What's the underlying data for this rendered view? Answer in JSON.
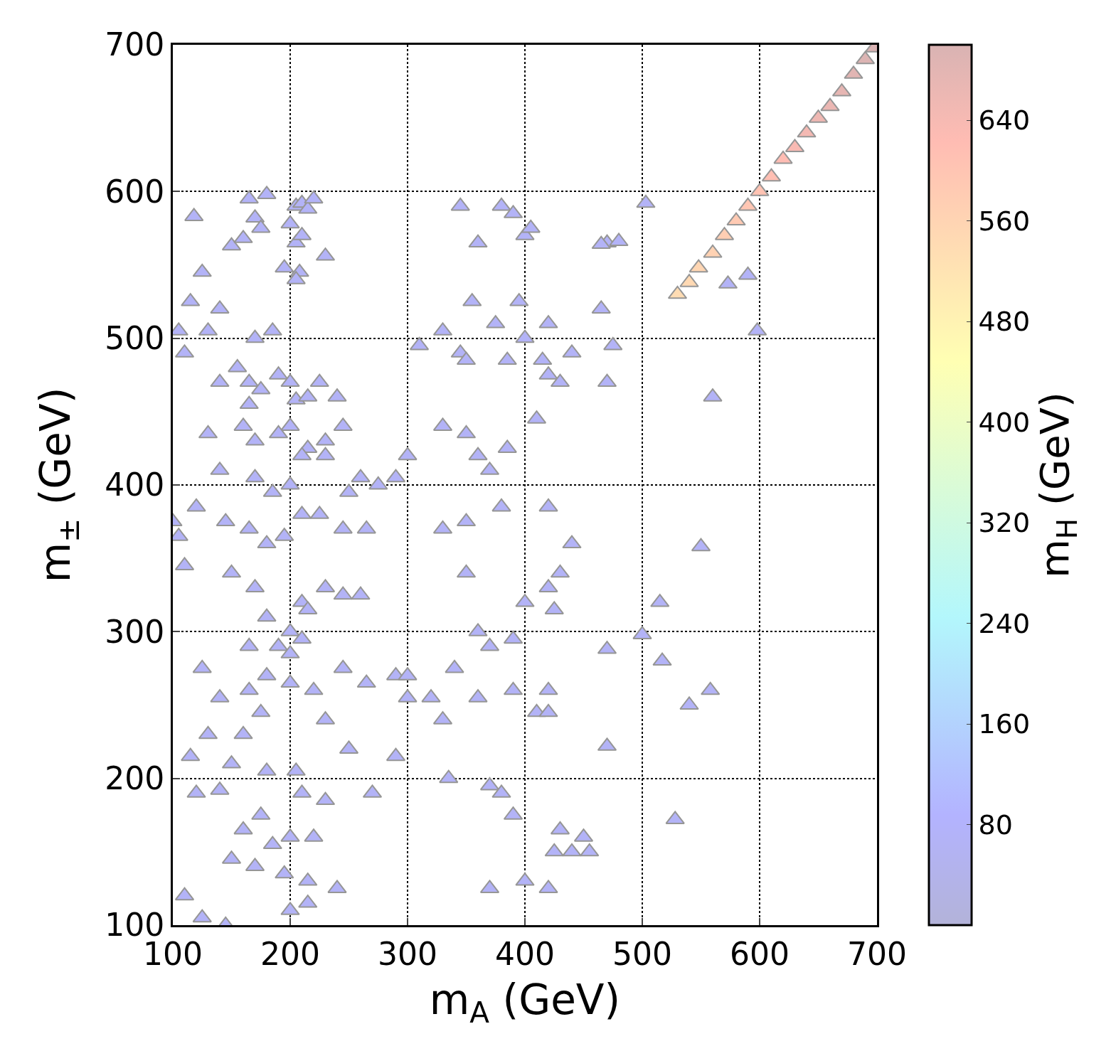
{
  "chart_data": {
    "type": "scatter",
    "xlabel": "m$_{A}$ (GeV)",
    "ylabel": "m$_{±}$ (GeV)",
    "clabel": "m$_{H}$ (GeV)",
    "marker": "triangle",
    "grid": true,
    "xlim": [
      100,
      700
    ],
    "ylim": [
      100,
      700
    ],
    "xticks": [
      100,
      200,
      300,
      400,
      500,
      600,
      700
    ],
    "yticks": [
      100,
      200,
      300,
      400,
      500,
      600,
      700
    ],
    "clim": [
      0,
      700
    ],
    "cticks": [
      80,
      160,
      240,
      320,
      400,
      480,
      560,
      640
    ],
    "x": [
      118,
      140,
      125,
      150,
      160,
      170,
      180,
      165,
      175,
      205,
      210,
      215,
      220,
      230,
      200,
      205,
      210,
      208,
      205,
      195,
      140,
      155,
      165,
      175,
      170,
      185,
      130,
      110,
      105,
      115,
      190,
      200,
      205,
      215,
      225,
      240,
      245,
      230,
      215,
      200,
      190,
      170,
      165,
      160,
      130,
      140,
      170,
      185,
      200,
      210,
      230,
      250,
      260,
      275,
      290,
      300,
      265,
      245,
      225,
      210,
      195,
      180,
      165,
      145,
      120,
      105,
      100,
      110,
      150,
      170,
      180,
      200,
      210,
      215,
      230,
      245,
      260,
      190,
      200,
      210,
      165,
      125,
      140,
      165,
      180,
      200,
      220,
      245,
      265,
      290,
      300,
      175,
      160,
      130,
      115,
      150,
      180,
      205,
      230,
      250,
      290,
      210,
      230,
      270,
      120,
      140,
      175,
      200,
      220,
      160,
      150,
      185,
      195,
      215,
      110,
      125,
      200,
      215,
      240,
      170,
      145,
      310,
      330,
      345,
      350,
      360,
      380,
      390,
      400,
      405,
      345,
      355,
      375,
      385,
      410,
      415,
      420,
      430,
      440,
      400,
      395,
      420,
      470,
      465,
      475,
      470,
      330,
      350,
      360,
      370,
      385,
      330,
      350,
      380,
      420,
      440,
      400,
      420,
      430,
      425,
      350,
      360,
      370,
      390,
      390,
      420,
      410,
      420,
      360,
      340,
      330,
      300,
      320,
      335,
      370,
      380,
      390,
      430,
      450,
      455,
      425,
      440,
      370,
      400,
      420,
      470,
      470,
      500,
      515,
      550,
      540,
      558,
      517,
      528,
      560,
      573,
      590,
      598,
      503,
      480,
      465,
      530,
      540,
      548,
      560,
      570,
      580,
      590,
      600,
      610,
      620,
      630,
      640,
      650,
      660,
      670,
      680,
      690,
      698
    ],
    "values": [
      583,
      520,
      545,
      563,
      568,
      582,
      598,
      595,
      575,
      590,
      592,
      588,
      595,
      556,
      578,
      565,
      570,
      545,
      540,
      548,
      470,
      480,
      470,
      465,
      500,
      505,
      505,
      490,
      505,
      525,
      475,
      470,
      458,
      460,
      470,
      460,
      440,
      430,
      425,
      440,
      435,
      430,
      455,
      440,
      435,
      410,
      405,
      395,
      400,
      420,
      420,
      395,
      405,
      400,
      405,
      420,
      370,
      370,
      380,
      380,
      365,
      360,
      370,
      375,
      385,
      365,
      375,
      345,
      340,
      330,
      310,
      300,
      320,
      315,
      330,
      325,
      325,
      290,
      285,
      295,
      290,
      275,
      255,
      260,
      270,
      265,
      260,
      275,
      265,
      270,
      255,
      245,
      230,
      230,
      215,
      210,
      205,
      205,
      240,
      220,
      215,
      190,
      185,
      190,
      190,
      192,
      175,
      160,
      160,
      165,
      145,
      155,
      135,
      130,
      120,
      105,
      110,
      115,
      125,
      140,
      100,
      495,
      505,
      490,
      485,
      565,
      590,
      585,
      570,
      575,
      590,
      525,
      510,
      485,
      445,
      485,
      475,
      470,
      490,
      500,
      525,
      510,
      565,
      520,
      495,
      470,
      440,
      435,
      420,
      410,
      425,
      370,
      375,
      385,
      385,
      360,
      320,
      330,
      340,
      315,
      340,
      300,
      290,
      295,
      260,
      260,
      245,
      245,
      255,
      275,
      240,
      270,
      255,
      200,
      195,
      190,
      175,
      165,
      160,
      150,
      150,
      150,
      125,
      130,
      125,
      222,
      288,
      298,
      320,
      358,
      250,
      260,
      280,
      172,
      460,
      537,
      543,
      505,
      592,
      566,
      564,
      530,
      538,
      548,
      558,
      570,
      580,
      590,
      600,
      610,
      622,
      630,
      640,
      650,
      658,
      668,
      680,
      690,
      698
    ],
    "cvalues": [
      70,
      70,
      70,
      70,
      70,
      70,
      70,
      70,
      70,
      70,
      70,
      70,
      70,
      70,
      70,
      70,
      70,
      70,
      70,
      70,
      70,
      70,
      70,
      70,
      70,
      70,
      70,
      70,
      70,
      70,
      70,
      70,
      70,
      70,
      70,
      70,
      70,
      70,
      70,
      70,
      70,
      70,
      70,
      70,
      70,
      70,
      70,
      70,
      70,
      70,
      70,
      70,
      70,
      70,
      70,
      70,
      70,
      70,
      70,
      70,
      70,
      70,
      70,
      70,
      70,
      70,
      70,
      70,
      70,
      70,
      70,
      70,
      70,
      70,
      70,
      70,
      70,
      70,
      70,
      70,
      70,
      70,
      70,
      70,
      70,
      70,
      70,
      70,
      70,
      70,
      70,
      70,
      70,
      70,
      70,
      70,
      70,
      70,
      70,
      70,
      70,
      70,
      70,
      70,
      70,
      70,
      70,
      70,
      70,
      70,
      70,
      70,
      70,
      70,
      70,
      70,
      70,
      70,
      70,
      70,
      70,
      70,
      70,
      70,
      70,
      70,
      70,
      70,
      70,
      70,
      70,
      70,
      70,
      70,
      70,
      70,
      70,
      70,
      70,
      70,
      70,
      70,
      70,
      70,
      70,
      70,
      70,
      70,
      70,
      70,
      70,
      70,
      70,
      70,
      70,
      70,
      70,
      70,
      70,
      70,
      70,
      70,
      70,
      70,
      70,
      70,
      70,
      70,
      70,
      70,
      70,
      70,
      70,
      70,
      70,
      70,
      70,
      70,
      70,
      70,
      70,
      70,
      70,
      70,
      70,
      70,
      70,
      70,
      70,
      70,
      70,
      70,
      70,
      70,
      70,
      70,
      70,
      70,
      70,
      70,
      70,
      540,
      548,
      556,
      566,
      576,
      586,
      596,
      606,
      616,
      626,
      636,
      646,
      656,
      664,
      674,
      684,
      694,
      700
    ]
  }
}
